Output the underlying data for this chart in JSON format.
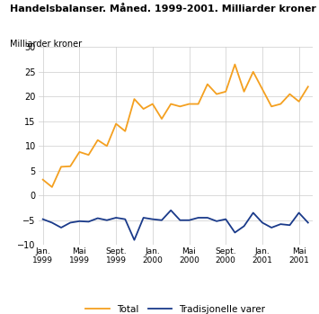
{
  "title": "Handelsbalanser. Måned. 1999-2001. Milliarder kroner",
  "ylabel": "Milliarder kroner",
  "ylim": [
    -10,
    30
  ],
  "yticks": [
    -10,
    -5,
    0,
    5,
    10,
    15,
    20,
    25,
    30
  ],
  "bg_color": "#ffffff",
  "grid_color": "#cccccc",
  "title_line_color": "#4dd0cc",
  "total_color": "#f4a020",
  "tradisjonelle_color": "#1a3a8a",
  "total_label": "Total",
  "tradisjonelle_label": "Tradisjonelle varer",
  "xtick_labels": [
    "Jan.\n1999",
    "Mai\n1999",
    "Sept.\n1999",
    "Jan.\n2000",
    "Mai\n2000",
    "Sept.\n2000",
    "Jan.\n2001",
    "Mai\n2001"
  ],
  "xtick_positions": [
    0,
    4,
    8,
    12,
    16,
    20,
    24,
    28
  ],
  "total_values": [
    3.2,
    1.7,
    5.8,
    5.9,
    8.8,
    8.2,
    11.2,
    10.0,
    14.5,
    13.0,
    19.5,
    17.5,
    18.5,
    15.5,
    18.5,
    18.0,
    18.5,
    18.5,
    22.5,
    20.5,
    21.0,
    26.5,
    21.0,
    25.0,
    21.5,
    18.0,
    18.5,
    20.5,
    19.0,
    22.0
  ],
  "tradisjonelle_values": [
    -4.8,
    -5.5,
    -6.5,
    -5.5,
    -5.2,
    -5.3,
    -4.6,
    -5.0,
    -4.5,
    -4.8,
    -9.0,
    -4.5,
    -4.8,
    -5.0,
    -3.0,
    -5.0,
    -5.0,
    -4.5,
    -4.5,
    -5.2,
    -4.8,
    -7.5,
    -6.2,
    -3.5,
    -5.5,
    -6.5,
    -5.8,
    -6.0,
    -3.5,
    -5.5
  ]
}
